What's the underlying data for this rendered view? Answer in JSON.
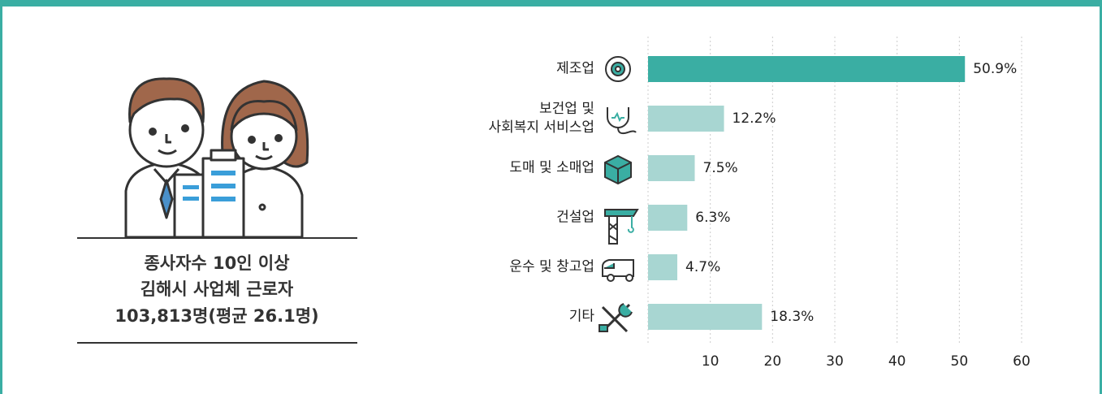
{
  "summary": [
    "종사자수 10인 이상",
    "김해시 사업체 근로자",
    "103,813명(평균 26.1명)"
  ],
  "chart_data": {
    "type": "barh",
    "categories": [
      "제조업",
      "보건업 및\n사회복지 서비스업",
      "도매 및 소매업",
      "건설업",
      "운수 및 창고업",
      "기타"
    ],
    "values": [
      50.9,
      12.2,
      7.5,
      6.3,
      4.7,
      18.3
    ],
    "value_labels": [
      "50.9%",
      "12.2%",
      "7.5%",
      "6.3%",
      "4.7%",
      "18.3%"
    ],
    "colors": [
      "#3aaea3",
      "#a8d6d2",
      "#a8d6d2",
      "#a8d6d2",
      "#a8d6d2",
      "#a8d6d2"
    ],
    "xlim": [
      0,
      60
    ],
    "xticks": [
      10,
      20,
      30,
      40,
      50,
      60
    ],
    "grid": true
  }
}
